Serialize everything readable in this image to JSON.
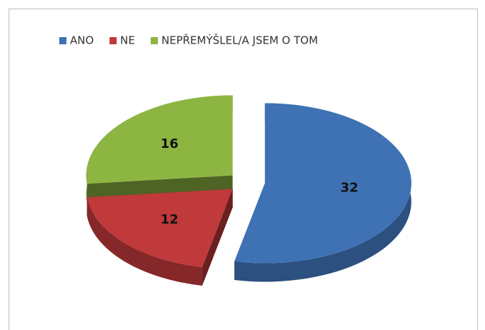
{
  "chart_data": {
    "type": "pie",
    "categories": [
      "ANO",
      "NE",
      "NEPŘEMÝŠLEL/A JSEM O TOM"
    ],
    "values": [
      32,
      12,
      16
    ],
    "colors": [
      "#3f72b5",
      "#c0393b",
      "#8db542"
    ],
    "legend": "top",
    "exploded": true,
    "three_d": true
  }
}
